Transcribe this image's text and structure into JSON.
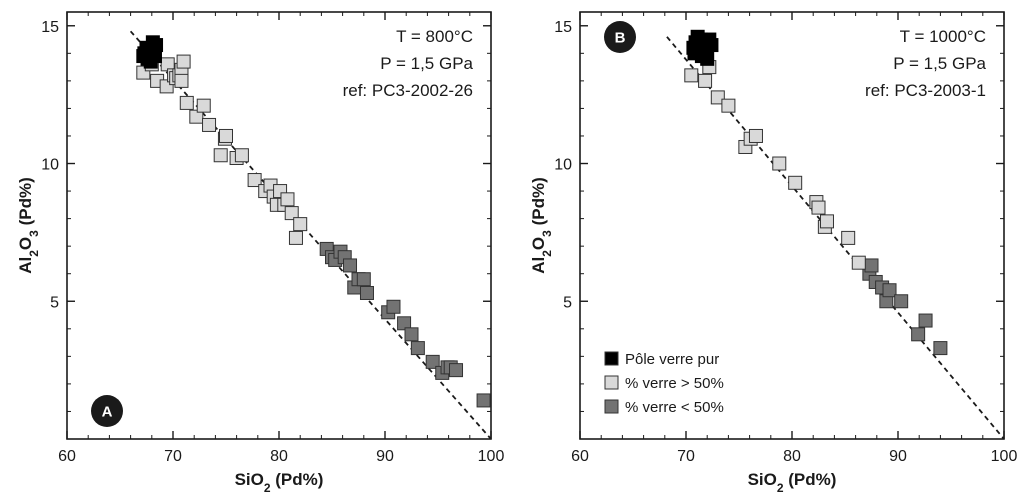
{
  "chart_data": [
    {
      "type": "scatter",
      "panel_label": "A",
      "xlabel": "SiO2 (Pd%)",
      "ylabel": "Al2O3 (Pd%)",
      "xlim": [
        60,
        100
      ],
      "ylim": [
        0,
        15.5
      ],
      "x_ticks": [
        60,
        70,
        80,
        90,
        100
      ],
      "y_ticks": [
        5,
        10,
        15
      ],
      "annotations": [
        "T = 800°C",
        "P = 1,5 GPa",
        "ref: PC3-2002-26"
      ],
      "trend_line": {
        "x": [
          66.0,
          100.0
        ],
        "y": [
          14.8,
          0.0
        ]
      },
      "series": [
        {
          "name": "Pôle verre pur",
          "color": "#000000",
          "x": [
            67.3,
            67.8,
            68.2,
            67.6,
            68.4,
            67.2,
            68.0,
            67.9,
            68.3,
            67.5,
            68.1,
            67.7
          ],
          "y": [
            14.0,
            14.1,
            14.2,
            13.8,
            14.3,
            13.9,
            14.0,
            13.7,
            13.9,
            14.2,
            14.4,
            14.1
          ]
        },
        {
          "name": "% verre > 50%",
          "color": "#d9d9d9",
          "x": [
            67.2,
            68.0,
            68.5,
            69.4,
            69.5,
            70.1,
            70.3,
            70.6,
            70.8,
            71.0,
            70.8,
            71.3,
            72.2,
            72.9,
            73.4,
            74.5,
            74.9,
            75.0,
            76.0,
            76.5,
            77.7,
            78.7,
            79.2,
            79.5,
            79.8,
            80.1,
            80.5,
            80.8,
            81.2,
            81.6,
            82.0
          ],
          "y": [
            13.3,
            13.6,
            13.0,
            12.8,
            13.6,
            13.2,
            13.1,
            13.2,
            13.4,
            13.7,
            13.0,
            12.2,
            11.7,
            12.1,
            11.4,
            10.3,
            10.9,
            11.0,
            10.2,
            10.3,
            9.4,
            9.0,
            9.2,
            8.8,
            8.5,
            9.0,
            8.5,
            8.7,
            8.2,
            7.3,
            7.8
          ]
        },
        {
          "name": "% verre < 50%",
          "color": "#737373",
          "x": [
            84.5,
            85.0,
            85.3,
            85.8,
            86.2,
            86.7,
            87.1,
            87.5,
            88.0,
            88.3,
            90.3,
            90.8,
            91.8,
            92.5,
            93.1,
            94.5,
            95.4,
            95.9,
            96.2,
            96.7,
            99.3
          ],
          "y": [
            6.9,
            6.6,
            6.5,
            6.8,
            6.6,
            6.3,
            5.5,
            5.8,
            5.8,
            5.3,
            4.6,
            4.8,
            4.2,
            3.8,
            3.3,
            2.8,
            2.4,
            2.6,
            2.6,
            2.5,
            1.4
          ]
        }
      ]
    },
    {
      "type": "scatter",
      "panel_label": "B",
      "xlabel": "SiO2 (Pd%)",
      "ylabel": "Al2O3 (Pd%)",
      "xlim": [
        60,
        100
      ],
      "ylim": [
        0,
        15.5
      ],
      "x_ticks": [
        60,
        70,
        80,
        90,
        100
      ],
      "y_ticks": [
        5,
        10,
        15
      ],
      "annotations": [
        "T = 1000°C",
        "P = 1,5 GPa",
        "ref: PC3-2003-1"
      ],
      "legend": {
        "position": "bottom-left"
      },
      "trend_line": {
        "x": [
          68.2,
          100.0
        ],
        "y": [
          14.6,
          0.0
        ]
      },
      "series": [
        {
          "name": "Pôle verre pur",
          "color": "#000000",
          "x": [
            70.8,
            71.3,
            71.7,
            72.2,
            70.9,
            71.5,
            72.4,
            71.1,
            71.9,
            72.0,
            70.7,
            71.4
          ],
          "y": [
            14.0,
            14.2,
            14.4,
            14.5,
            14.4,
            13.9,
            14.3,
            14.6,
            14.1,
            13.8,
            14.2,
            14.5
          ]
        },
        {
          "name": "% verre > 50%",
          "color": "#d9d9d9",
          "x": [
            70.5,
            71.8,
            72.2,
            73.0,
            74.0,
            75.6,
            76.1,
            76.6,
            78.8,
            80.3,
            82.3,
            82.5,
            83.1,
            83.3,
            85.3,
            86.3
          ],
          "y": [
            13.2,
            13.0,
            13.5,
            12.4,
            12.1,
            10.6,
            10.9,
            11.0,
            10.0,
            9.3,
            8.6,
            8.4,
            7.7,
            7.9,
            7.3,
            6.4
          ]
        },
        {
          "name": "% verre < 50%",
          "color": "#737373",
          "x": [
            87.3,
            87.5,
            87.9,
            88.5,
            88.9,
            89.2,
            90.3,
            91.9,
            92.6,
            94.0
          ],
          "y": [
            6.0,
            6.3,
            5.7,
            5.5,
            5.0,
            5.4,
            5.0,
            3.8,
            4.3,
            3.3
          ]
        }
      ]
    }
  ]
}
